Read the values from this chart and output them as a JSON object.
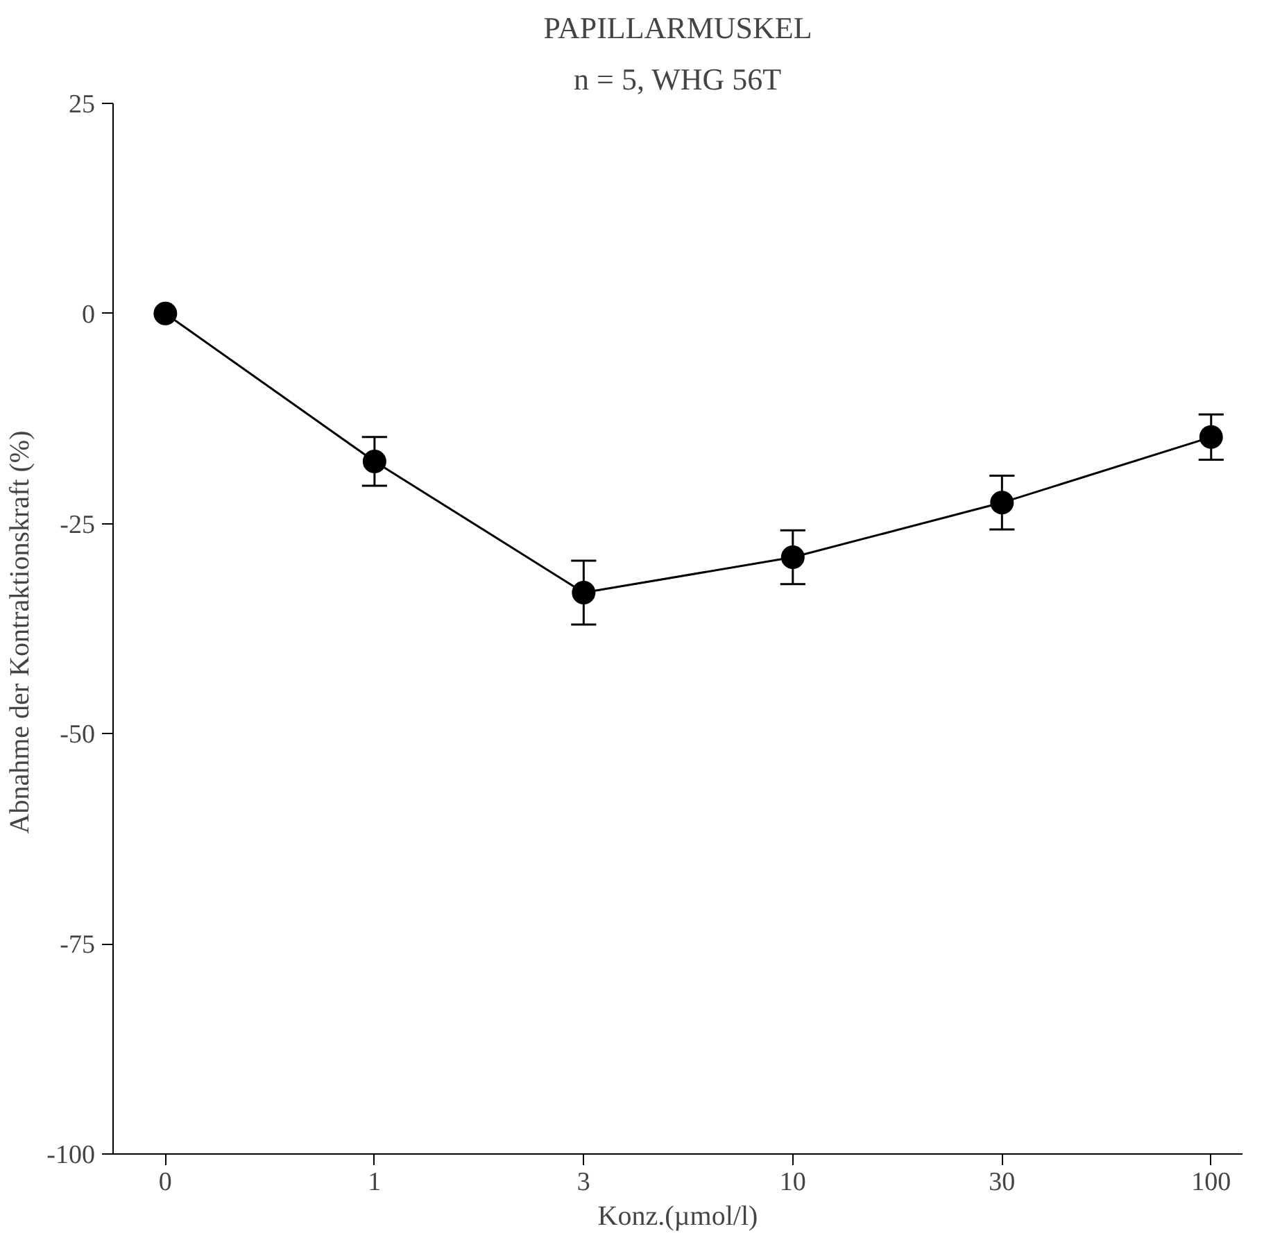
{
  "chart_data": {
    "type": "line",
    "title": "PAPILLARMUSKEL",
    "subtitle": "n = 5, WHG 56T",
    "xlabel": "Konz.(µmol/l)",
    "ylabel": "Abnahme der Kontraktionskraft  (%)",
    "categories": [
      "0",
      "1",
      "3",
      "10",
      "30",
      "100"
    ],
    "series": [
      {
        "color": "#000000",
        "values": [
          0,
          -17.6,
          -33.2,
          -29,
          -22.5,
          -14.7
        ],
        "errors": [
          null,
          2.9,
          3.8,
          3.2,
          3.2,
          2.7
        ]
      }
    ],
    "ylim": [
      -100,
      25
    ],
    "yticks": [
      -100,
      -75,
      -50,
      -25,
      0,
      25
    ],
    "grid": false,
    "marker": "circle",
    "line_style": "solid"
  }
}
